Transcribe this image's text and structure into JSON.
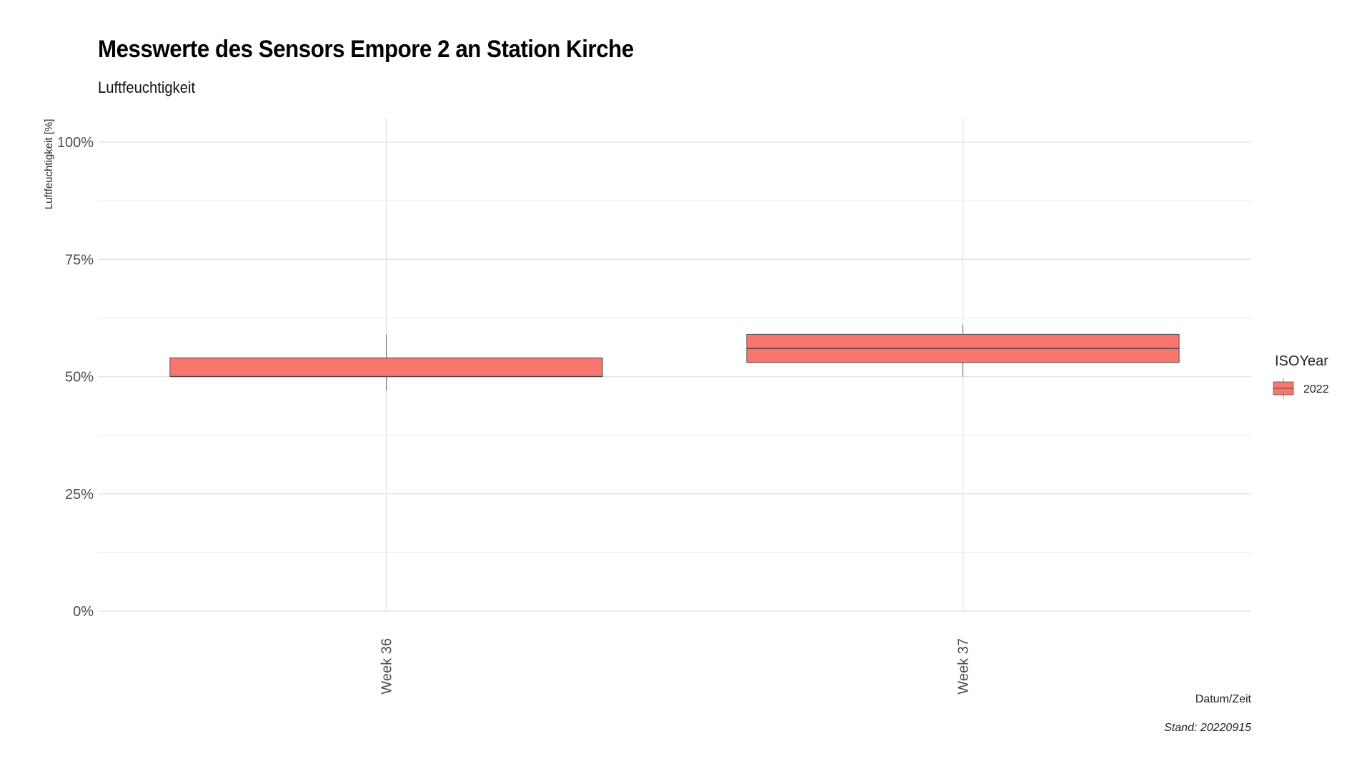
{
  "chart_data": {
    "type": "boxplot",
    "title": "Messwerte des Sensors Empore 2 an Station Kirche",
    "subtitle": "Luftfeuchtigkeit",
    "xlabel": "Datum/Zeit",
    "ylabel": "Luftfeuchtigkeit [%]",
    "caption": "Stand: 20220915",
    "ylim": [
      0,
      1.05
    ],
    "yticks": [
      {
        "value": 0,
        "label": "0%"
      },
      {
        "value": 0.25,
        "label": "25%"
      },
      {
        "value": 0.5,
        "label": "50%"
      },
      {
        "value": 0.75,
        "label": "75%"
      },
      {
        "value": 1.0,
        "label": "100%"
      }
    ],
    "grid": true,
    "legend": {
      "title": "ISOYear",
      "placement": "right",
      "entries": [
        "2022"
      ]
    },
    "fill_color": "#F8766D",
    "categories": [
      "Week 36",
      "Week 37"
    ],
    "series": [
      {
        "name": "2022",
        "boxes": [
          {
            "category": "Week 36",
            "lower_whisker": 0.47,
            "q1": 0.5,
            "median": 0.5,
            "q3": 0.54,
            "upper_whisker": 0.59
          },
          {
            "category": "Week 37",
            "lower_whisker": 0.5,
            "q1": 0.53,
            "median": 0.56,
            "q3": 0.59,
            "upper_whisker": 0.61
          }
        ]
      }
    ]
  }
}
